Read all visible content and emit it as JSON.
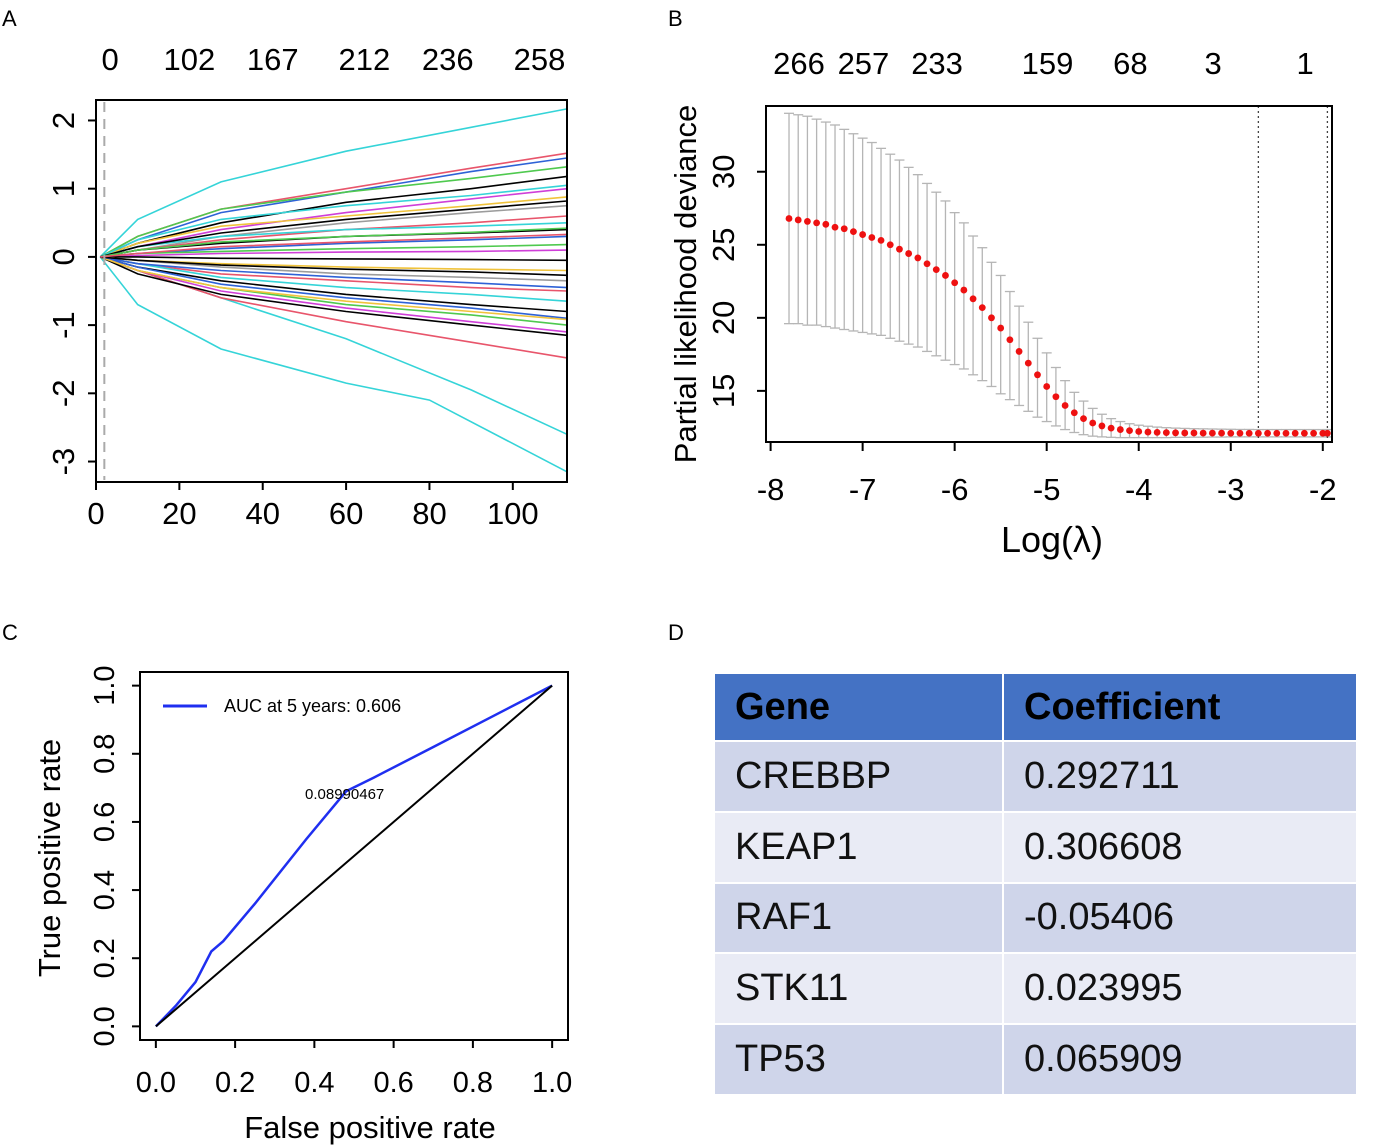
{
  "panels": {
    "a": "A",
    "b": "B",
    "c": "C",
    "d": "D"
  },
  "chart_data": [
    {
      "panel": "A",
      "type": "line",
      "title": "",
      "xlabel": "",
      "ylabel": "",
      "xlim": [
        0,
        113
      ],
      "ylim": [
        -3.3,
        2.3
      ],
      "x_ticks": [
        "0",
        "20",
        "40",
        "60",
        "80",
        "100"
      ],
      "y_ticks": [
        "2",
        "1",
        "0",
        "-1",
        "-2",
        "-3"
      ],
      "top_ticks": [
        "0",
        "102",
        "167",
        "212",
        "236",
        "258"
      ],
      "top_tick_positions": [
        1,
        20,
        40,
        62,
        82,
        104
      ],
      "reference_line_x": 2,
      "series": [
        {
          "name": "path-1",
          "color": "#35d4d8",
          "x": [
            1,
            10,
            30,
            60,
            90,
            113
          ],
          "values": [
            0,
            0.55,
            1.1,
            1.55,
            1.9,
            2.17
          ]
        },
        {
          "name": "path-2",
          "color": "#35d4d8",
          "x": [
            1,
            10,
            30,
            60,
            80,
            113
          ],
          "values": [
            0,
            -0.7,
            -1.35,
            -1.85,
            -2.1,
            -3.15
          ]
        },
        {
          "name": "path-3",
          "color": "#35d4d8",
          "x": [
            1,
            10,
            30,
            60,
            90,
            113
          ],
          "values": [
            0,
            -0.2,
            -0.6,
            -1.2,
            -1.95,
            -2.6
          ]
        },
        {
          "name": "path-4",
          "color": "#e8556b",
          "x": [
            1,
            10,
            30,
            60,
            90,
            113
          ],
          "values": [
            0,
            0.3,
            0.7,
            1.0,
            1.3,
            1.52
          ]
        },
        {
          "name": "path-5",
          "color": "#e8556b",
          "x": [
            1,
            10,
            30,
            60,
            90,
            113
          ],
          "values": [
            0,
            -0.2,
            -0.6,
            -0.95,
            -1.25,
            -1.48
          ]
        },
        {
          "name": "path-6",
          "color": "#2e62d6",
          "x": [
            1,
            10,
            30,
            60,
            90,
            113
          ],
          "values": [
            0,
            0.25,
            0.65,
            0.95,
            1.25,
            1.45
          ]
        },
        {
          "name": "path-7",
          "color": "#4fc94f",
          "x": [
            1,
            10,
            30,
            60,
            90,
            113
          ],
          "values": [
            0,
            0.3,
            0.7,
            0.95,
            1.15,
            1.32
          ]
        },
        {
          "name": "path-8",
          "color": "#000000",
          "x": [
            1,
            10,
            30,
            60,
            90,
            113
          ],
          "values": [
            0,
            0.2,
            0.5,
            0.8,
            1.0,
            1.18
          ]
        },
        {
          "name": "path-9",
          "color": "#cf3fd8",
          "x": [
            1,
            10,
            30,
            60,
            90,
            113
          ],
          "values": [
            0,
            0.15,
            0.4,
            0.65,
            0.85,
            1.0
          ]
        },
        {
          "name": "path-10",
          "color": "#f0c33c",
          "x": [
            1,
            10,
            30,
            60,
            90,
            113
          ],
          "values": [
            0,
            0.2,
            0.45,
            0.6,
            0.75,
            0.88
          ]
        },
        {
          "name": "path-11",
          "color": "#9c9c9c",
          "x": [
            1,
            10,
            30,
            60,
            90,
            113
          ],
          "values": [
            0,
            0.1,
            0.3,
            0.5,
            0.65,
            0.75
          ]
        },
        {
          "name": "path-12",
          "color": "#e8556b",
          "x": [
            1,
            10,
            30,
            60,
            90,
            113
          ],
          "values": [
            0,
            0.1,
            0.25,
            0.4,
            0.5,
            0.6
          ]
        },
        {
          "name": "path-13",
          "color": "#35d4d8",
          "x": [
            1,
            10,
            30,
            60,
            90,
            113
          ],
          "values": [
            0,
            0.15,
            0.3,
            0.4,
            0.45,
            0.5
          ]
        },
        {
          "name": "path-14",
          "color": "#000000",
          "x": [
            1,
            10,
            30,
            60,
            90,
            113
          ],
          "values": [
            0,
            0.1,
            0.2,
            0.3,
            0.35,
            0.4
          ]
        },
        {
          "name": "path-15",
          "color": "#2e62d6",
          "x": [
            1,
            10,
            30,
            60,
            90,
            113
          ],
          "values": [
            0,
            0.05,
            0.12,
            0.2,
            0.25,
            0.3
          ]
        },
        {
          "name": "path-16",
          "color": "#4fc94f",
          "x": [
            1,
            10,
            30,
            60,
            90,
            113
          ],
          "values": [
            0,
            0.05,
            0.08,
            0.12,
            0.15,
            0.18
          ]
        },
        {
          "name": "path-17",
          "color": "#cf3fd8",
          "x": [
            1,
            10,
            30,
            60,
            90,
            113
          ],
          "values": [
            0,
            0.02,
            0.05,
            0.07,
            0.08,
            0.1
          ]
        },
        {
          "name": "path-18",
          "color": "#000000",
          "x": [
            1,
            10,
            30,
            60,
            90,
            113
          ],
          "values": [
            0,
            0.0,
            -0.02,
            -0.03,
            -0.04,
            -0.05
          ]
        },
        {
          "name": "path-19",
          "color": "#f0c33c",
          "x": [
            1,
            10,
            30,
            60,
            90,
            113
          ],
          "values": [
            0,
            -0.05,
            -0.1,
            -0.15,
            -0.18,
            -0.2
          ]
        },
        {
          "name": "path-20",
          "color": "#9c9c9c",
          "x": [
            1,
            10,
            30,
            60,
            90,
            113
          ],
          "values": [
            0,
            -0.05,
            -0.15,
            -0.25,
            -0.3,
            -0.35
          ]
        },
        {
          "name": "path-21",
          "color": "#e8556b",
          "x": [
            1,
            10,
            30,
            60,
            90,
            113
          ],
          "values": [
            0,
            -0.1,
            -0.25,
            -0.35,
            -0.45,
            -0.5
          ]
        },
        {
          "name": "path-22",
          "color": "#35d4d8",
          "x": [
            1,
            10,
            30,
            60,
            90,
            113
          ],
          "values": [
            0,
            -0.1,
            -0.3,
            -0.45,
            -0.55,
            -0.65
          ]
        },
        {
          "name": "path-23",
          "color": "#000000",
          "x": [
            1,
            10,
            30,
            60,
            90,
            113
          ],
          "values": [
            0,
            -0.15,
            -0.35,
            -0.55,
            -0.7,
            -0.8
          ]
        },
        {
          "name": "path-24",
          "color": "#2e62d6",
          "x": [
            1,
            10,
            30,
            60,
            90,
            113
          ],
          "values": [
            0,
            -0.15,
            -0.4,
            -0.6,
            -0.75,
            -0.9
          ]
        },
        {
          "name": "path-25",
          "color": "#4fc94f",
          "x": [
            1,
            10,
            30,
            60,
            90,
            113
          ],
          "values": [
            0,
            -0.2,
            -0.45,
            -0.7,
            -0.85,
            -1.0
          ]
        },
        {
          "name": "path-26",
          "color": "#cf3fd8",
          "x": [
            1,
            10,
            30,
            60,
            90,
            113
          ],
          "values": [
            0,
            -0.2,
            -0.5,
            -0.75,
            -0.95,
            -1.1
          ]
        },
        {
          "name": "path-27",
          "color": "#000000",
          "x": [
            1,
            10,
            30,
            60,
            90,
            113
          ],
          "values": [
            0,
            -0.25,
            -0.55,
            -0.8,
            -1.0,
            -1.15
          ]
        },
        {
          "name": "path-28",
          "color": "#f0c33c",
          "x": [
            1,
            10,
            30,
            60,
            90,
            113
          ],
          "values": [
            0,
            -0.2,
            -0.45,
            -0.65,
            -0.8,
            -0.92
          ]
        },
        {
          "name": "path-29",
          "color": "#35d4d8",
          "x": [
            1,
            10,
            30,
            60,
            90,
            113
          ],
          "values": [
            0,
            0.25,
            0.55,
            0.75,
            0.9,
            1.05
          ]
        },
        {
          "name": "path-30",
          "color": "#000000",
          "x": [
            1,
            10,
            30,
            60,
            90,
            113
          ],
          "values": [
            0,
            0.15,
            0.35,
            0.55,
            0.7,
            0.82
          ]
        },
        {
          "name": "path-31",
          "color": "#2e62d6",
          "x": [
            1,
            10,
            30,
            60,
            90,
            113
          ],
          "values": [
            0,
            -0.1,
            -0.2,
            -0.3,
            -0.38,
            -0.45
          ]
        },
        {
          "name": "path-32",
          "color": "#4fc94f",
          "x": [
            1,
            10,
            30,
            60,
            90,
            113
          ],
          "values": [
            0,
            0.1,
            0.22,
            0.3,
            0.36,
            0.42
          ]
        },
        {
          "name": "path-33",
          "color": "#000000",
          "x": [
            1,
            10,
            30,
            60,
            90,
            113
          ],
          "values": [
            0,
            -0.05,
            -0.12,
            -0.18,
            -0.22,
            -0.27
          ]
        },
        {
          "name": "path-34",
          "color": "#e8556b",
          "x": [
            1,
            10,
            30,
            60,
            90,
            113
          ],
          "values": [
            0,
            0.05,
            0.15,
            0.22,
            0.28,
            0.33
          ]
        }
      ]
    },
    {
      "panel": "B",
      "type": "scatter",
      "title": "",
      "xlabel": "Log(λ)",
      "ylabel": "Partial likelihood deviance",
      "xlim": [
        -8.05,
        -1.9
      ],
      "ylim": [
        11.5,
        34.5
      ],
      "x_ticks": [
        "-8",
        "-7",
        "-6",
        "-5",
        "-4",
        "-3",
        "-2"
      ],
      "y_ticks": [
        "30",
        "25",
        "20",
        "15"
      ],
      "top_ticks": [
        "266",
        "257",
        "233",
        "159",
        "68",
        "3",
        "1"
      ],
      "top_tick_positions": [
        -7.8,
        -7.1,
        -6.3,
        -5.1,
        -4.2,
        -3.3,
        -2.3
      ],
      "vlines_x": [
        -2.7,
        -1.95
      ],
      "x": [
        -7.8,
        -7.7,
        -7.6,
        -7.5,
        -7.4,
        -7.3,
        -7.2,
        -7.1,
        -7.0,
        -6.9,
        -6.8,
        -6.7,
        -6.6,
        -6.5,
        -6.4,
        -6.3,
        -6.2,
        -6.1,
        -6.0,
        -5.9,
        -5.8,
        -5.7,
        -5.6,
        -5.5,
        -5.4,
        -5.3,
        -5.2,
        -5.1,
        -5.0,
        -4.9,
        -4.8,
        -4.7,
        -4.6,
        -4.5,
        -4.4,
        -4.3,
        -4.2,
        -4.1,
        -4.0,
        -3.9,
        -3.8,
        -3.7,
        -3.6,
        -3.5,
        -3.4,
        -3.3,
        -3.2,
        -3.1,
        -3.0,
        -2.9,
        -2.8,
        -2.7,
        -2.6,
        -2.5,
        -2.4,
        -2.3,
        -2.2,
        -2.1,
        -2.0,
        -1.95
      ],
      "values": [
        26.8,
        26.7,
        26.6,
        26.5,
        26.4,
        26.2,
        26.1,
        25.9,
        25.7,
        25.5,
        25.3,
        25.0,
        24.7,
        24.4,
        24.1,
        23.7,
        23.3,
        22.9,
        22.4,
        21.9,
        21.3,
        20.7,
        20.0,
        19.3,
        18.5,
        17.7,
        16.9,
        16.1,
        15.3,
        14.6,
        14.0,
        13.5,
        13.1,
        12.8,
        12.6,
        12.45,
        12.35,
        12.28,
        12.22,
        12.18,
        12.16,
        12.14,
        12.13,
        12.12,
        12.12,
        12.11,
        12.11,
        12.11,
        12.1,
        12.1,
        12.1,
        12.1,
        12.1,
        12.1,
        12.1,
        12.1,
        12.1,
        12.1,
        12.1,
        12.1
      ],
      "upper": [
        34.0,
        33.9,
        33.8,
        33.6,
        33.4,
        33.2,
        32.9,
        32.6,
        32.3,
        32.0,
        31.6,
        31.2,
        30.8,
        30.3,
        29.8,
        29.2,
        28.6,
        28.0,
        27.2,
        26.5,
        25.6,
        24.8,
        23.8,
        22.9,
        21.8,
        20.8,
        19.7,
        18.6,
        17.6,
        16.6,
        15.7,
        14.9,
        14.3,
        13.8,
        13.4,
        13.1,
        12.9,
        12.75,
        12.65,
        12.58,
        12.52,
        12.48,
        12.45,
        12.43,
        12.41,
        12.4,
        12.39,
        12.38,
        12.37,
        12.36,
        12.36,
        12.35,
        12.35,
        12.35,
        12.35,
        12.35,
        12.35,
        12.35,
        12.35,
        12.35
      ],
      "lower": [
        19.6,
        19.6,
        19.5,
        19.5,
        19.4,
        19.3,
        19.2,
        19.1,
        19.0,
        18.9,
        18.8,
        18.6,
        18.4,
        18.2,
        18.0,
        17.7,
        17.4,
        17.1,
        16.8,
        16.5,
        16.1,
        15.7,
        15.3,
        14.8,
        14.4,
        14.0,
        13.6,
        13.2,
        12.9,
        12.6,
        12.35,
        12.15,
        12.0,
        11.9,
        11.85,
        11.82,
        11.8,
        11.8,
        11.8,
        11.8,
        11.8,
        11.8,
        11.82,
        11.82,
        11.83,
        11.83,
        11.84,
        11.84,
        11.85,
        11.85,
        11.85,
        11.85,
        11.85,
        11.85,
        11.85,
        11.85,
        11.85,
        11.85,
        11.85,
        11.85
      ]
    },
    {
      "panel": "C",
      "type": "line",
      "title": "",
      "xlabel": "False positive rate",
      "ylabel": "True positive rate",
      "xlim": [
        -0.04,
        1.04
      ],
      "ylim": [
        -0.04,
        1.04
      ],
      "x_ticks": [
        "0.0",
        "0.2",
        "0.4",
        "0.6",
        "0.8",
        "1.0"
      ],
      "y_ticks": [
        "0.0",
        "0.2",
        "0.4",
        "0.6",
        "0.8",
        "1.0"
      ],
      "legend": "AUC at 5 years: 0.606",
      "legend_position": "top-left",
      "annotation": "0.08990467",
      "series": [
        {
          "name": "AUC at 5 years: 0.606",
          "color": "#1f2ff0",
          "x": [
            0.0,
            0.05,
            0.1,
            0.14,
            0.17,
            0.25,
            0.38,
            0.48,
            0.55,
            0.7,
            0.85,
            1.0
          ],
          "values": [
            0.0,
            0.06,
            0.13,
            0.22,
            0.25,
            0.36,
            0.55,
            0.69,
            0.73,
            0.82,
            0.91,
            1.0
          ]
        },
        {
          "name": "diagonal",
          "color": "#000000",
          "x": [
            0.0,
            1.0
          ],
          "values": [
            0.0,
            1.0
          ]
        }
      ]
    },
    {
      "panel": "D",
      "type": "table",
      "columns": [
        "Gene",
        "Coefficient"
      ],
      "rows": [
        [
          "CREBBP",
          "0.292711"
        ],
        [
          "KEAP1",
          "0.306608"
        ],
        [
          "RAF1",
          "-0.05406"
        ],
        [
          "STK11",
          "0.023995"
        ],
        [
          "TP53",
          "0.065909"
        ]
      ]
    }
  ]
}
